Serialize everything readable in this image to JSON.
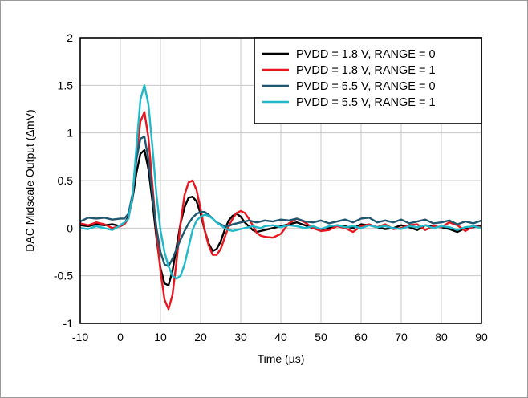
{
  "chart_data": {
    "type": "line",
    "title": "",
    "xlabel": "Time (µs)",
    "ylabel": "DAC Midscale Output (∆mV)",
    "xlim": [
      -10,
      90
    ],
    "ylim": [
      -1,
      2
    ],
    "xticks": [
      -10,
      0,
      10,
      20,
      30,
      40,
      50,
      60,
      70,
      80,
      90
    ],
    "xtick_labels": [
      "-10",
      "0",
      "10",
      "20",
      "30",
      "40",
      "50",
      "60",
      "70",
      "80",
      "90"
    ],
    "yticks": [
      -1,
      -0.5,
      0,
      0.5,
      1,
      1.5,
      2
    ],
    "ytick_labels": [
      "-1",
      "-0.5",
      "0",
      "0.5",
      "1",
      "1.5",
      "2"
    ],
    "grid": true,
    "legend_position": "top-right",
    "series": [
      {
        "name": "PVDD = 1.8 V, RANGE = 0",
        "color": "#000000",
        "x": [
          -10,
          -8,
          -6,
          -4,
          -2,
          0,
          1,
          2,
          3,
          4,
          5,
          6,
          7,
          8,
          9,
          10,
          11,
          12,
          13,
          14,
          15,
          16,
          17,
          18,
          19,
          20,
          21,
          22,
          23,
          24,
          25,
          26,
          27,
          28,
          29,
          30,
          31,
          32,
          33,
          34,
          35,
          36,
          38,
          40,
          42,
          44,
          46,
          48,
          50,
          52,
          54,
          56,
          58,
          60,
          62,
          64,
          66,
          68,
          70,
          72,
          74,
          76,
          78,
          80,
          82,
          84,
          86,
          88,
          90
        ],
        "y": [
          0.03,
          0.02,
          0.04,
          0.03,
          0.04,
          0.02,
          0.05,
          0.12,
          0.3,
          0.58,
          0.78,
          0.82,
          0.62,
          0.28,
          -0.1,
          -0.42,
          -0.58,
          -0.6,
          -0.45,
          -0.2,
          0.05,
          0.22,
          0.32,
          0.33,
          0.28,
          0.15,
          -0.02,
          -0.16,
          -0.24,
          -0.22,
          -0.14,
          -0.02,
          0.08,
          0.13,
          0.15,
          0.12,
          0.06,
          0.02,
          -0.02,
          -0.04,
          -0.03,
          -0.02,
          0.0,
          0.02,
          0.04,
          0.06,
          0.03,
          0.0,
          -0.02,
          0.0,
          0.03,
          0.02,
          0.0,
          0.04,
          0.03,
          0.01,
          -0.01,
          0.0,
          0.03,
          0.01,
          -0.02,
          0.03,
          0.02,
          0.01,
          -0.01,
          -0.04,
          0.0,
          0.01,
          0.03
        ]
      },
      {
        "name": "PVDD = 1.8 V, RANGE = 1",
        "color": "#e8161e",
        "x": [
          -10,
          -8,
          -6,
          -4,
          -2,
          0,
          1,
          2,
          3,
          4,
          5,
          6,
          7,
          8,
          9,
          10,
          11,
          12,
          13,
          14,
          15,
          16,
          17,
          18,
          19,
          20,
          21,
          22,
          23,
          24,
          25,
          26,
          27,
          28,
          29,
          30,
          31,
          32,
          33,
          34,
          35,
          36,
          38,
          40,
          42,
          44,
          46,
          48,
          50,
          52,
          54,
          56,
          58,
          60,
          62,
          64,
          66,
          68,
          70,
          72,
          74,
          76,
          78,
          80,
          82,
          84,
          86,
          88,
          90
        ],
        "y": [
          0.05,
          0.03,
          0.06,
          0.04,
          0.0,
          0.02,
          0.04,
          0.1,
          0.32,
          0.78,
          1.12,
          1.22,
          0.95,
          0.45,
          -0.05,
          -0.45,
          -0.75,
          -0.85,
          -0.7,
          -0.35,
          0.05,
          0.35,
          0.48,
          0.5,
          0.4,
          0.2,
          -0.02,
          -0.18,
          -0.28,
          -0.28,
          -0.22,
          -0.1,
          0.02,
          0.1,
          0.16,
          0.18,
          0.16,
          0.1,
          0.03,
          -0.05,
          -0.08,
          -0.09,
          -0.1,
          -0.06,
          0.05,
          0.1,
          0.06,
          0.0,
          -0.03,
          -0.02,
          0.02,
          0.0,
          -0.04,
          0.02,
          0.04,
          0.01,
          0.04,
          -0.01,
          0.0,
          0.03,
          0.04,
          -0.02,
          0.02,
          0.01,
          0.06,
          0.03,
          -0.03,
          0.02,
          0.01
        ]
      },
      {
        "name": "PVDD = 5.5 V, RANGE = 0",
        "color": "#1f5670",
        "x": [
          -10,
          -8,
          -6,
          -4,
          -2,
          0,
          1,
          2,
          3,
          4,
          5,
          6,
          7,
          8,
          9,
          10,
          11,
          12,
          13,
          14,
          15,
          16,
          17,
          18,
          19,
          20,
          21,
          22,
          23,
          24,
          25,
          26,
          27,
          28,
          29,
          30,
          31,
          32,
          33,
          34,
          35,
          36,
          38,
          40,
          42,
          44,
          46,
          48,
          50,
          52,
          54,
          56,
          58,
          60,
          62,
          64,
          66,
          68,
          70,
          72,
          74,
          76,
          78,
          80,
          82,
          84,
          86,
          88,
          90
        ],
        "y": [
          0.07,
          0.11,
          0.1,
          0.11,
          0.09,
          0.1,
          0.1,
          0.15,
          0.35,
          0.72,
          0.94,
          0.96,
          0.72,
          0.35,
          0.0,
          -0.25,
          -0.38,
          -0.4,
          -0.32,
          -0.22,
          -0.12,
          -0.03,
          0.05,
          0.11,
          0.15,
          0.17,
          0.17,
          0.14,
          0.1,
          0.06,
          0.04,
          0.02,
          0.02,
          0.04,
          0.05,
          0.06,
          0.07,
          0.08,
          0.07,
          0.06,
          0.07,
          0.08,
          0.07,
          0.09,
          0.08,
          0.1,
          0.07,
          0.06,
          0.08,
          0.05,
          0.07,
          0.09,
          0.06,
          0.1,
          0.11,
          0.06,
          0.08,
          0.06,
          0.09,
          0.05,
          0.07,
          0.09,
          0.05,
          0.06,
          0.08,
          0.04,
          0.07,
          0.05,
          0.08
        ]
      },
      {
        "name": "PVDD = 5.5 V, RANGE = 1",
        "color": "#1fb9c9",
        "x": [
          -10,
          -8,
          -6,
          -4,
          -2,
          0,
          1,
          2,
          3,
          4,
          5,
          6,
          7,
          8,
          9,
          10,
          11,
          12,
          13,
          14,
          15,
          16,
          17,
          18,
          19,
          20,
          21,
          22,
          23,
          24,
          25,
          26,
          27,
          28,
          29,
          30,
          31,
          32,
          33,
          34,
          35,
          36,
          38,
          40,
          42,
          44,
          46,
          48,
          50,
          52,
          54,
          56,
          58,
          60,
          62,
          64,
          66,
          68,
          70,
          72,
          74,
          76,
          78,
          80,
          82,
          84,
          86,
          88,
          90
        ],
        "y": [
          0.0,
          -0.01,
          0.02,
          0.0,
          -0.02,
          0.03,
          0.06,
          0.1,
          0.32,
          0.85,
          1.35,
          1.5,
          1.3,
          0.85,
          0.35,
          -0.02,
          -0.25,
          -0.4,
          -0.5,
          -0.53,
          -0.5,
          -0.38,
          -0.2,
          -0.02,
          0.08,
          0.12,
          0.14,
          0.13,
          0.1,
          0.06,
          0.03,
          0.0,
          -0.02,
          -0.03,
          -0.02,
          -0.01,
          0.0,
          0.01,
          0.02,
          0.01,
          0.0,
          0.02,
          0.03,
          0.01,
          0.03,
          0.02,
          0.0,
          0.02,
          -0.01,
          0.02,
          0.03,
          0.01,
          0.02,
          0.0,
          0.03,
          0.01,
          0.02,
          0.0,
          -0.01,
          0.02,
          0.01,
          0.03,
          0.0,
          0.02,
          0.01,
          -0.02,
          0.01,
          0.02,
          0.0
        ]
      }
    ]
  }
}
